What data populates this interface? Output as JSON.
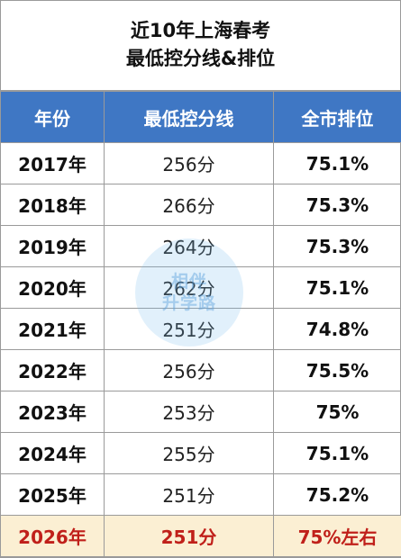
{
  "title": {
    "line1": "近10年上海春考",
    "line2": "最低控分线&排位"
  },
  "table": {
    "headers": [
      "年份",
      "最低控分线",
      "全市排位"
    ],
    "rows": [
      {
        "year": "2017年",
        "score": "256分",
        "rank": "75.1%"
      },
      {
        "year": "2018年",
        "score": "266分",
        "rank": "75.3%"
      },
      {
        "year": "2019年",
        "score": "264分",
        "rank": "75.3%"
      },
      {
        "year": "2020年",
        "score": "262分",
        "rank": "75.1%"
      },
      {
        "year": "2021年",
        "score": "251分",
        "rank": "74.8%"
      },
      {
        "year": "2022年",
        "score": "256分",
        "rank": "75.5%"
      },
      {
        "year": "2023年",
        "score": "253分",
        "rank": "75%"
      },
      {
        "year": "2024年",
        "score": "255分",
        "rank": "75.1%"
      },
      {
        "year": "2025年",
        "score": "251分",
        "rank": "75.2%"
      },
      {
        "year": "2026年",
        "score": "251分",
        "rank": "75%左右"
      }
    ]
  },
  "watermark": {
    "line1": "相伴",
    "line2": "升学路"
  },
  "colors": {
    "header_bg": "#3f77c4",
    "highlight_bg": "#fbefd3",
    "highlight_text": "#c0201a"
  }
}
